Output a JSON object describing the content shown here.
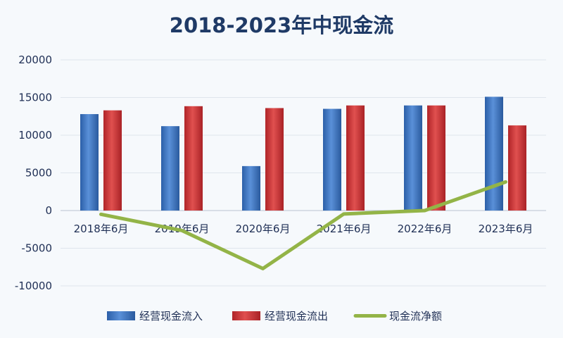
{
  "chart_data": {
    "type": "bar",
    "title": "2018-2023年中现金流",
    "categories": [
      "2018年6月",
      "2019年6月",
      "2020年6月",
      "2021年6月",
      "2022年6月",
      "2023年6月"
    ],
    "series": [
      {
        "name": "经营现金流入",
        "type": "bar",
        "color": "#3b73c0",
        "values": [
          12800,
          11200,
          5900,
          13500,
          13950,
          15100
        ]
      },
      {
        "name": "经营现金流出",
        "type": "bar",
        "color": "#c9353a",
        "values": [
          13300,
          13850,
          13600,
          13950,
          13950,
          11300
        ]
      },
      {
        "name": "现金流净额",
        "type": "line",
        "color": "#93b447",
        "values": [
          -500,
          -2650,
          -7700,
          -450,
          0,
          3800
        ]
      }
    ],
    "yticks": [
      "20000",
      "15000",
      "10000",
      "5000",
      "0",
      "-5000",
      "-10000"
    ],
    "ylim": [
      -10000,
      20000
    ],
    "grid": true,
    "legend": "bottom"
  }
}
